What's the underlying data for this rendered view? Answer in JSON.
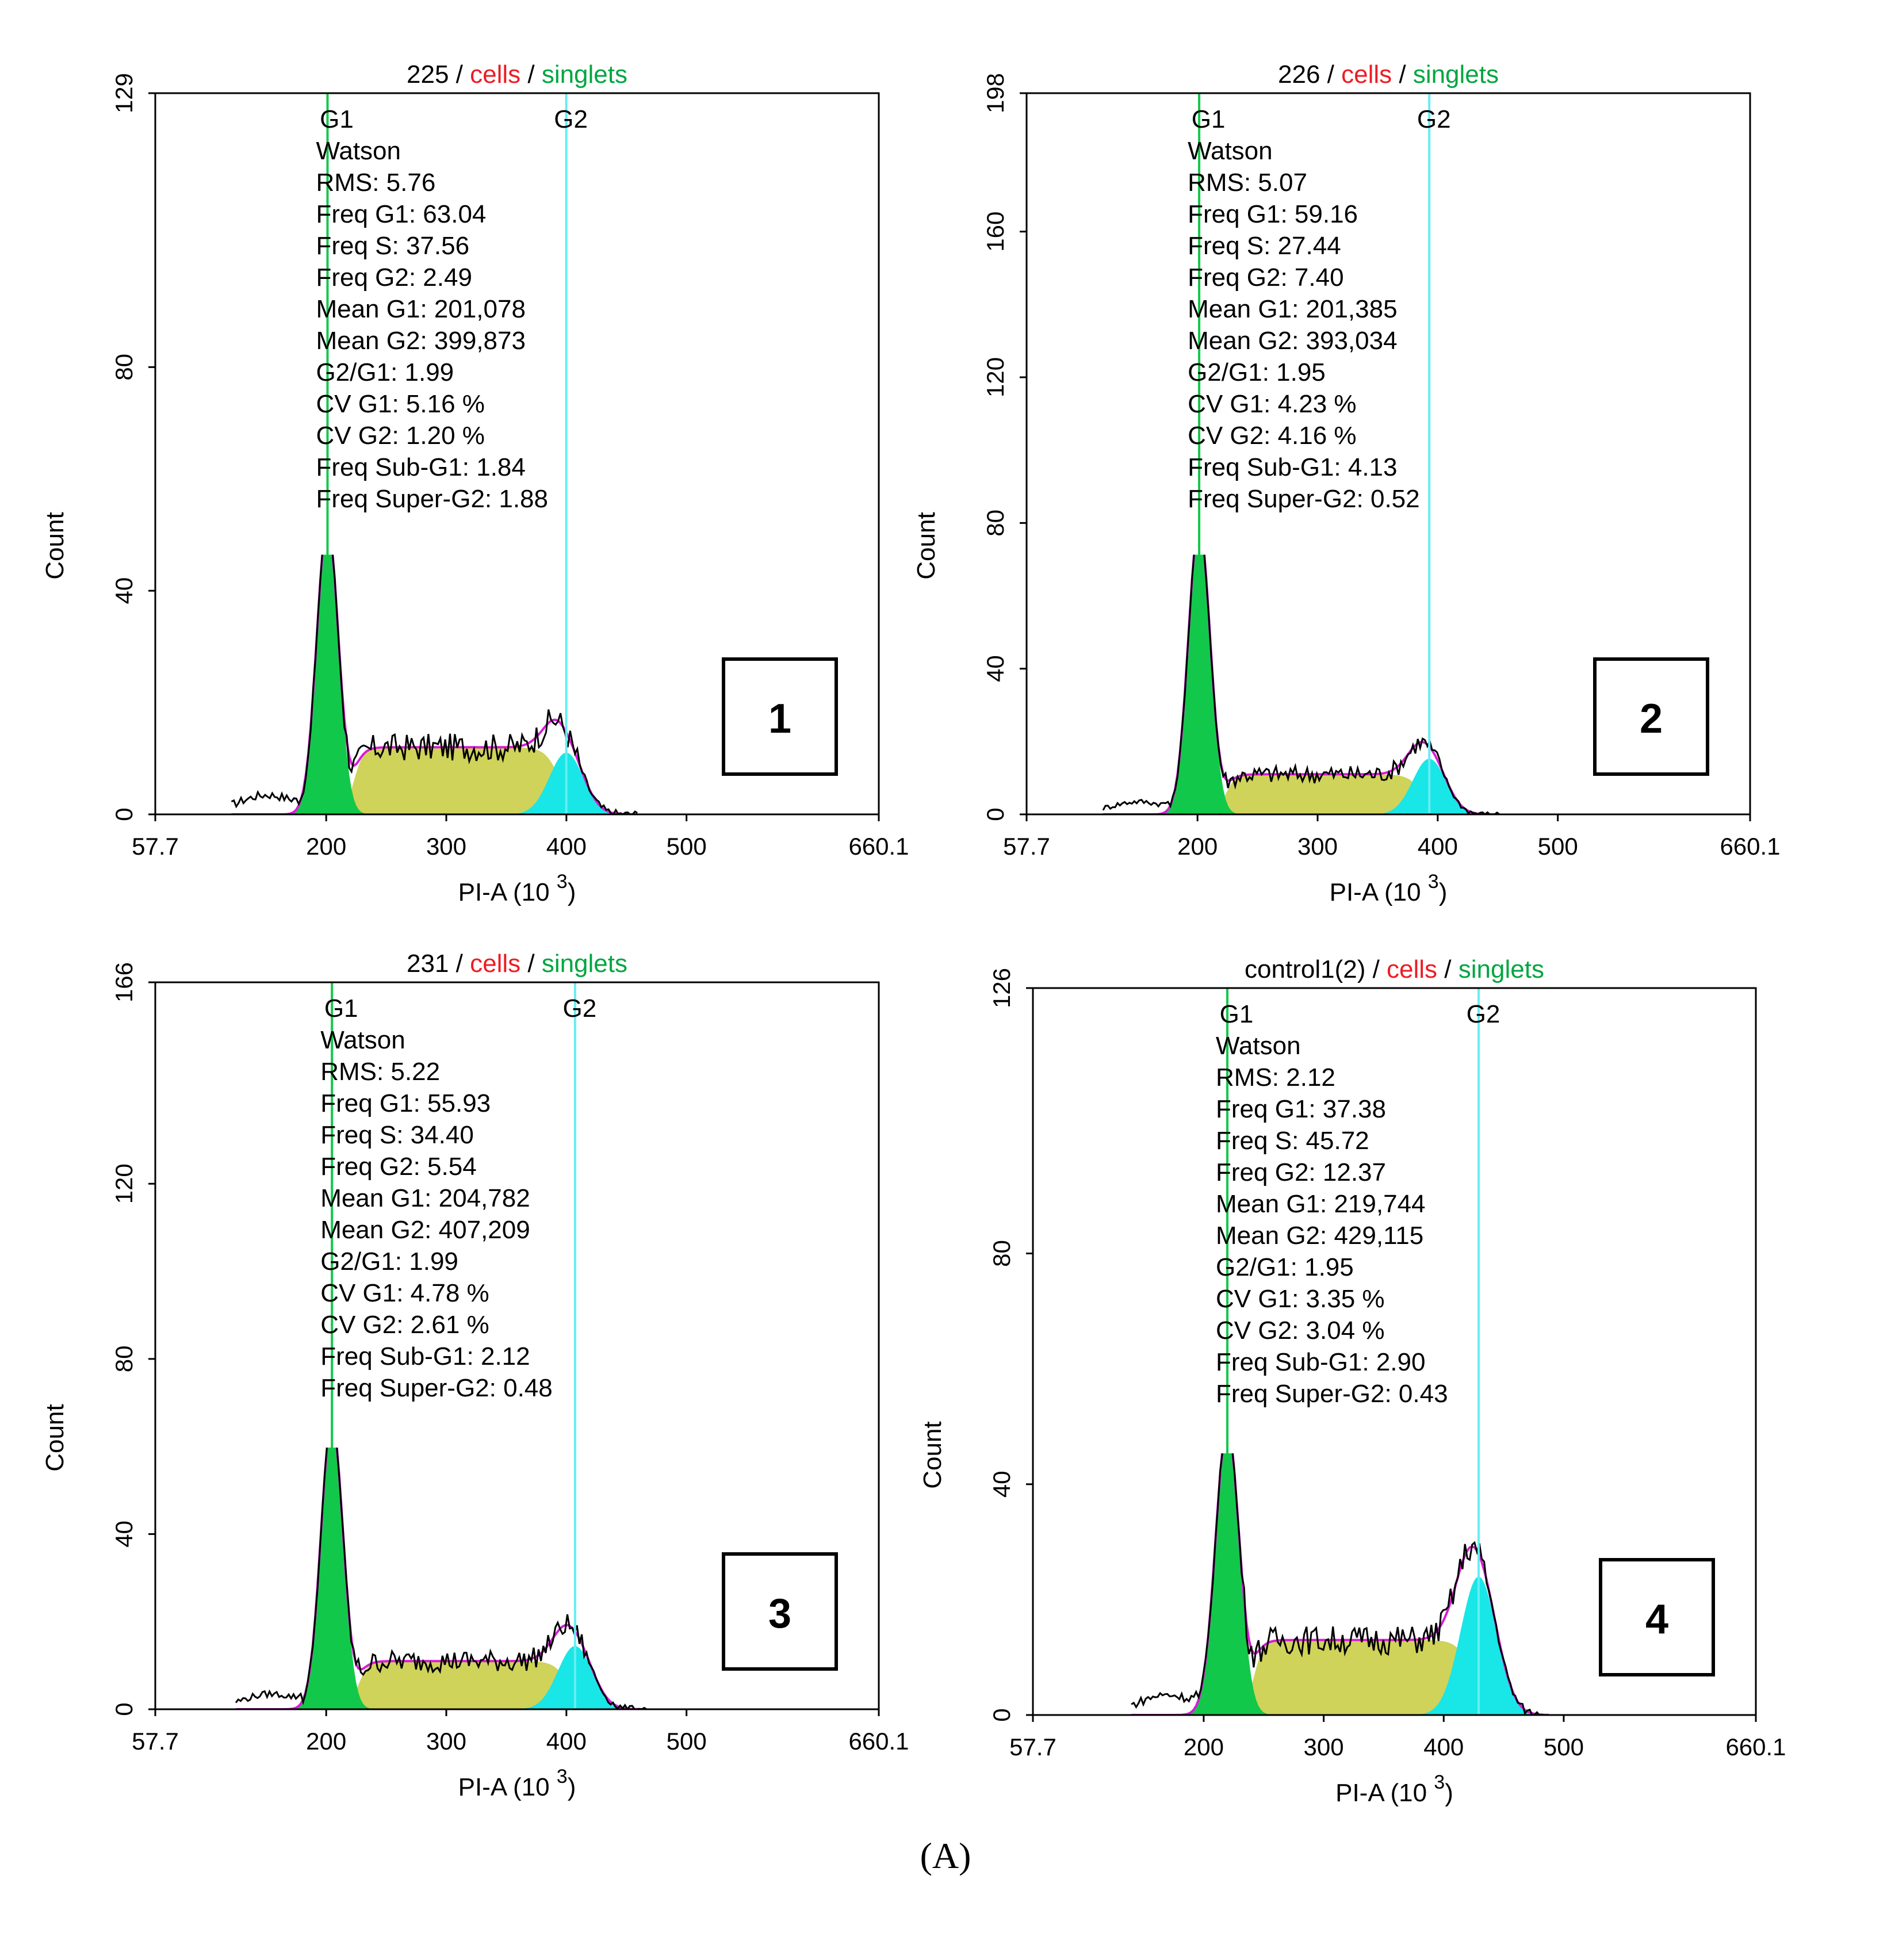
{
  "figure_label": "(A)",
  "colors": {
    "g1": "#12c84a",
    "g1_dark": "#0aa02f",
    "s_phase": "#cfd35a",
    "g2": "#19e6e6",
    "g2_line": "#66eef2",
    "fit_line": "#d81bd8",
    "histogram": "#000000",
    "s_fit_line": "#f0732d",
    "red_text": "#ee1c24",
    "green_text": "#00a640"
  },
  "chart_data": [
    {
      "type": "histogram",
      "title": {
        "sample": "225",
        "sep1": " / ",
        "cells": "cells",
        "sep2": " / ",
        "singlets": "singlets"
      },
      "xlabel": "PI-A",
      "xlabel_unit": "(10",
      "xlabel_exp": "3",
      "xlabel_close": ")",
      "ylabel": "Count",
      "xlim": [
        57.7,
        660.1
      ],
      "ylim": [
        0,
        129
      ],
      "xticks": [
        "57.7",
        "200",
        "300",
        "400",
        "500",
        "660.1"
      ],
      "xtick_values": [
        57.7,
        200,
        300,
        400,
        500,
        660.1
      ],
      "yticks": [
        "0",
        "40",
        "80",
        "129"
      ],
      "ytick_values": [
        0,
        40,
        80,
        129
      ],
      "panel_number": "1",
      "g1_label": "G1",
      "g2_label": "G2",
      "g1_marker": 201.1,
      "g2_marker": 399.9,
      "g1_peak": 52,
      "g2_peak": 13,
      "s_level": 12,
      "annotations": [
        "Watson",
        "RMS: 5.76",
        "Freq G1: 63.04",
        "Freq S: 37.56",
        "Freq G2: 2.49",
        "Mean G1: 201,078",
        "Mean G2: 399,873",
        "G2/G1: 1.99",
        "CV G1: 5.16 %",
        "CV G2: 1.20 %",
        "Freq Sub-G1: 1.84",
        "Freq Super-G2: 1.88"
      ]
    },
    {
      "type": "histogram",
      "title": {
        "sample": "226",
        "sep1": " / ",
        "cells": "cells",
        "sep2": " / ",
        "singlets": "singlets"
      },
      "xlabel": "PI-A",
      "xlabel_unit": "(10",
      "xlabel_exp": "3",
      "xlabel_close": ")",
      "ylabel": "Count",
      "xlim": [
        57.7,
        660.1
      ],
      "ylim": [
        0,
        198
      ],
      "xticks": [
        "57.7",
        "200",
        "300",
        "400",
        "500",
        "660.1"
      ],
      "xtick_values": [
        57.7,
        200,
        300,
        400,
        500,
        660.1
      ],
      "yticks": [
        "0",
        "40",
        "80",
        "120",
        "160",
        "198"
      ],
      "ytick_values": [
        0,
        40,
        80,
        120,
        160,
        198
      ],
      "panel_number": "2",
      "g1_label": "G1",
      "g2_label": "G2",
      "g1_marker": 201.4,
      "g2_marker": 393.0,
      "g1_peak": 80,
      "g2_peak": 18,
      "s_level": 11,
      "annotations": [
        "Watson",
        "RMS: 5.07",
        "Freq G1: 59.16",
        "Freq S: 27.44",
        "Freq G2: 7.40",
        "Mean G1: 201,385",
        "Mean G2: 393,034",
        "G2/G1: 1.95",
        "CV G1: 4.23 %",
        "CV G2: 4.16 %",
        "Freq Sub-G1: 4.13",
        "Freq Super-G2: 0.52"
      ]
    },
    {
      "type": "histogram",
      "title": {
        "sample": "231",
        "sep1": " / ",
        "cells": "cells",
        "sep2": " / ",
        "singlets": "singlets"
      },
      "xlabel": "PI-A",
      "xlabel_unit": "(10",
      "xlabel_exp": "3",
      "xlabel_close": ")",
      "ylabel": "Count",
      "xlim": [
        57.7,
        660.1
      ],
      "ylim": [
        0,
        166
      ],
      "xticks": [
        "57.7",
        "200",
        "300",
        "400",
        "500",
        "660.1"
      ],
      "xtick_values": [
        57.7,
        200,
        300,
        400,
        500,
        660.1
      ],
      "yticks": [
        "0",
        "40",
        "80",
        "120",
        "166"
      ],
      "ytick_values": [
        0,
        40,
        80,
        120,
        166
      ],
      "panel_number": "3",
      "g1_label": "G1",
      "g2_label": "G2",
      "g1_marker": 204.8,
      "g2_marker": 407.2,
      "g1_peak": 66,
      "g2_peak": 17,
      "s_level": 11,
      "annotations": [
        "Watson",
        "RMS: 5.22",
        "Freq G1: 55.93",
        "Freq S: 34.40",
        "Freq G2: 5.54",
        "Mean G1: 204,782",
        "Mean G2: 407,209",
        "G2/G1: 1.99",
        "CV G1: 4.78 %",
        "CV G2: 2.61 %",
        "Freq Sub-G1: 2.12",
        "Freq Super-G2: 0.48"
      ]
    },
    {
      "type": "histogram",
      "title": {
        "sample": "control1(2)",
        "sep1": " / ",
        "cells": "cells",
        "sep2": " / ",
        "singlets": "singlets"
      },
      "xlabel": "PI-A",
      "xlabel_unit": "(10",
      "xlabel_exp": "3",
      "xlabel_close": ")",
      "ylabel": "Count",
      "xlim": [
        57.7,
        660.1
      ],
      "ylim": [
        0,
        126
      ],
      "xticks": [
        "57.7",
        "200",
        "300",
        "400",
        "500",
        "660.1"
      ],
      "xtick_values": [
        57.7,
        200,
        300,
        400,
        500,
        660.1
      ],
      "yticks": [
        "0",
        "40",
        "80",
        "126"
      ],
      "ytick_values": [
        0,
        40,
        80,
        126
      ],
      "panel_number": "4",
      "g1_label": "G1",
      "g2_label": "G2",
      "g1_marker": 219.7,
      "g2_marker": 429.1,
      "g1_peak": 50,
      "g2_peak": 24,
      "s_level": 13,
      "annotations": [
        "Watson",
        "RMS: 2.12",
        "Freq G1: 37.38",
        "Freq S: 45.72",
        "Freq G2: 12.37",
        "Mean G1: 219,744",
        "Mean G2: 429,115",
        "G2/G1: 1.95",
        "CV G1: 3.35 %",
        "CV G2: 3.04 %",
        "Freq Sub-G1: 2.90",
        "Freq Super-G2: 0.43"
      ]
    }
  ]
}
